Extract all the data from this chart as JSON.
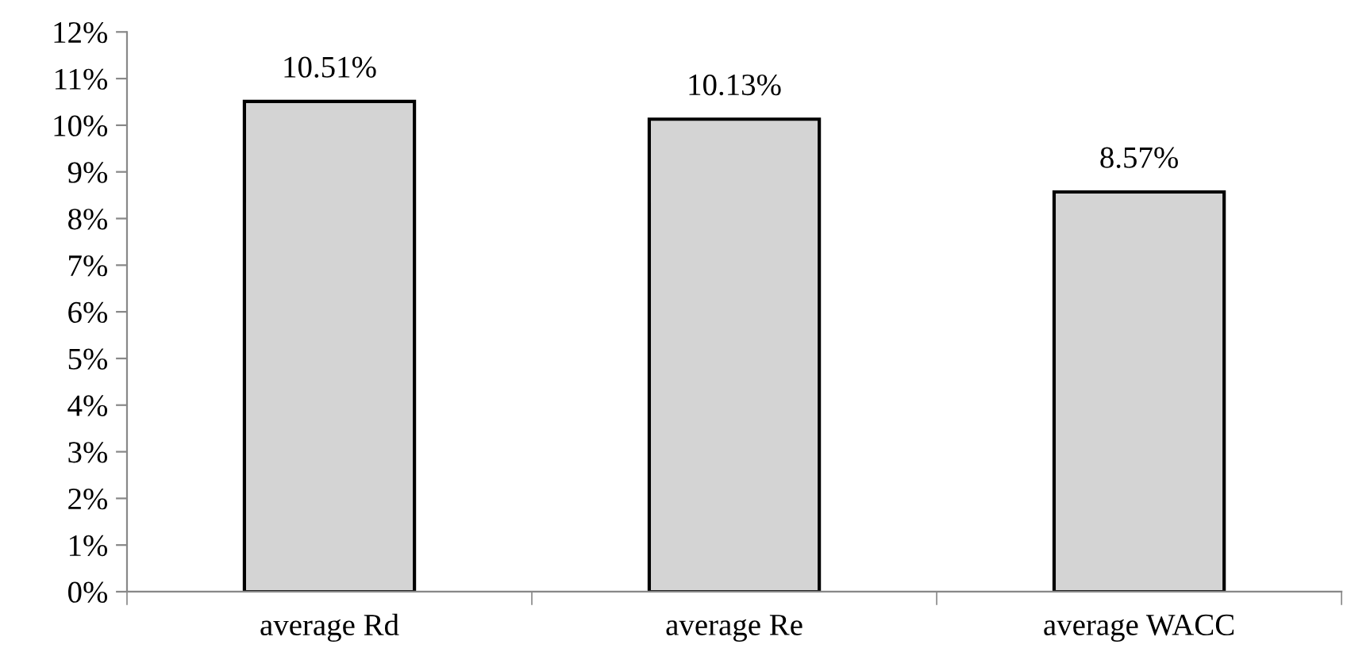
{
  "chart_data": {
    "type": "bar",
    "categories": [
      "average Rd",
      "average Re",
      "average WACC"
    ],
    "values": [
      10.51,
      10.13,
      8.57
    ],
    "value_labels": [
      "10.51%",
      "10.13%",
      "8.57%"
    ],
    "color": "#d4d4d4",
    "ylim": [
      0,
      12
    ],
    "yticks": [
      {
        "value": 0,
        "label": "0%"
      },
      {
        "value": 1,
        "label": "1%"
      },
      {
        "value": 2,
        "label": "2%"
      },
      {
        "value": 3,
        "label": "3%"
      },
      {
        "value": 4,
        "label": "4%"
      },
      {
        "value": 5,
        "label": "5%"
      },
      {
        "value": 6,
        "label": "6%"
      },
      {
        "value": 7,
        "label": "7%"
      },
      {
        "value": 8,
        "label": "8%"
      },
      {
        "value": 9,
        "label": "9%"
      },
      {
        "value": 10,
        "label": "10%"
      },
      {
        "value": 11,
        "label": "11%"
      },
      {
        "value": 12,
        "label": "12%"
      }
    ],
    "grid": false,
    "legend": false
  }
}
